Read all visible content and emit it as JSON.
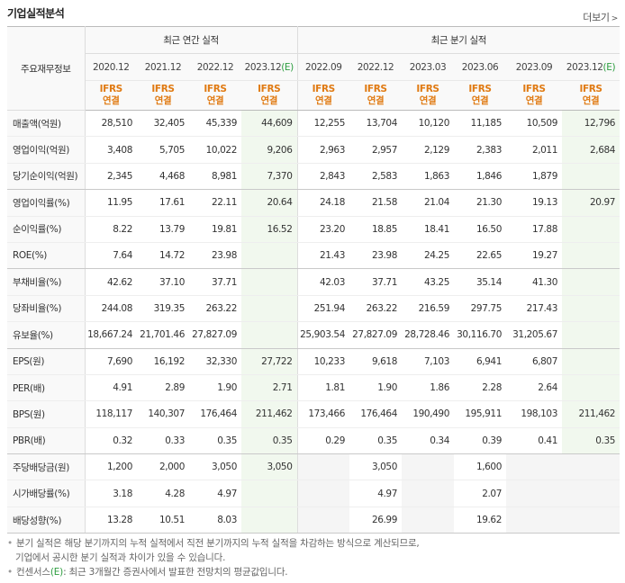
{
  "header": {
    "title": "기업실적분석",
    "more": "더보기"
  },
  "table": {
    "corner": "주요재무정보",
    "group_annual": "최근 연간 실적",
    "group_quarter": "최근 분기 실적",
    "annual_periods": [
      "2020.12",
      "2021.12",
      "2022.12",
      "2023.12"
    ],
    "annual_est_suffix": "(E)",
    "quarter_periods": [
      "2022.09",
      "2022.12",
      "2023.03",
      "2023.06",
      "2023.09",
      "2023.12"
    ],
    "quarter_est_suffix": "(E)",
    "ifrs": "IFRS",
    "consolidated": "연결",
    "rows": [
      {
        "label": "매출액(억원)",
        "v": [
          "28,510",
          "32,405",
          "45,339",
          "44,609",
          "12,255",
          "13,704",
          "10,120",
          "11,185",
          "10,509",
          "12,796"
        ]
      },
      {
        "label": "영업이익(억원)",
        "v": [
          "3,408",
          "5,705",
          "10,022",
          "9,206",
          "2,963",
          "2,957",
          "2,129",
          "2,383",
          "2,011",
          "2,684"
        ]
      },
      {
        "label": "당기순이익(억원)",
        "v": [
          "2,345",
          "4,468",
          "8,981",
          "7,370",
          "2,843",
          "2,583",
          "1,863",
          "1,846",
          "1,879",
          ""
        ]
      },
      {
        "label": "영업이익률(%)",
        "v": [
          "11.95",
          "17.61",
          "22.11",
          "20.64",
          "24.18",
          "21.58",
          "21.04",
          "21.30",
          "19.13",
          "20.97"
        ]
      },
      {
        "label": "순이익률(%)",
        "v": [
          "8.22",
          "13.79",
          "19.81",
          "16.52",
          "23.20",
          "18.85",
          "18.41",
          "16.50",
          "17.88",
          ""
        ]
      },
      {
        "label": "ROE(%)",
        "v": [
          "7.64",
          "14.72",
          "23.98",
          "",
          "21.43",
          "23.98",
          "24.25",
          "22.65",
          "19.27",
          ""
        ]
      },
      {
        "label": "부채비율(%)",
        "v": [
          "42.62",
          "37.10",
          "37.71",
          "",
          "42.03",
          "37.71",
          "43.25",
          "35.14",
          "41.30",
          ""
        ]
      },
      {
        "label": "당좌비율(%)",
        "v": [
          "244.08",
          "319.35",
          "263.22",
          "",
          "251.94",
          "263.22",
          "216.59",
          "297.75",
          "217.43",
          ""
        ]
      },
      {
        "label": "유보율(%)",
        "v": [
          "18,667.24",
          "21,701.46",
          "27,827.09",
          "",
          "25,903.54",
          "27,827.09",
          "28,728.46",
          "30,116.70",
          "31,205.67",
          ""
        ]
      },
      {
        "label": "EPS(원)",
        "v": [
          "7,690",
          "16,192",
          "32,330",
          "27,722",
          "10,233",
          "9,618",
          "7,103",
          "6,941",
          "6,807",
          ""
        ]
      },
      {
        "label": "PER(배)",
        "v": [
          "4.91",
          "2.89",
          "1.90",
          "2.71",
          "1.81",
          "1.90",
          "1.86",
          "2.28",
          "2.64",
          ""
        ]
      },
      {
        "label": "BPS(원)",
        "v": [
          "118,117",
          "140,307",
          "176,464",
          "211,462",
          "173,466",
          "176,464",
          "190,490",
          "195,911",
          "198,103",
          "211,462"
        ]
      },
      {
        "label": "PBR(배)",
        "v": [
          "0.32",
          "0.33",
          "0.35",
          "0.35",
          "0.29",
          "0.35",
          "0.34",
          "0.39",
          "0.41",
          "0.35"
        ]
      },
      {
        "label": "주당배당금(원)",
        "v": [
          "1,200",
          "2,000",
          "3,050",
          "3,050",
          "",
          "3,050",
          "",
          "1,600",
          "",
          ""
        ]
      },
      {
        "label": "시가배당률(%)",
        "v": [
          "3.18",
          "4.28",
          "4.97",
          "",
          "",
          "4.97",
          "",
          "2.07",
          "",
          ""
        ]
      },
      {
        "label": "배당성향(%)",
        "v": [
          "13.28",
          "10.51",
          "8.03",
          "",
          "",
          "26.99",
          "",
          "19.62",
          "",
          ""
        ]
      }
    ]
  },
  "notes": {
    "n1a": "분기 실적은 해당 분기까지의 누적 실적에서 직전 분기까지의 누적 실적을 차감하는 방식으로 계산되므로,",
    "n1b": "기업에서 공시한 분기 실적과 차이가 있을 수 있습니다.",
    "n2_pre": "컨센서스",
    "n2_e": "(E)",
    "n2_post": ": 최근 3개월간 증권사에서 발표한 전망치의 평균값입니다."
  }
}
